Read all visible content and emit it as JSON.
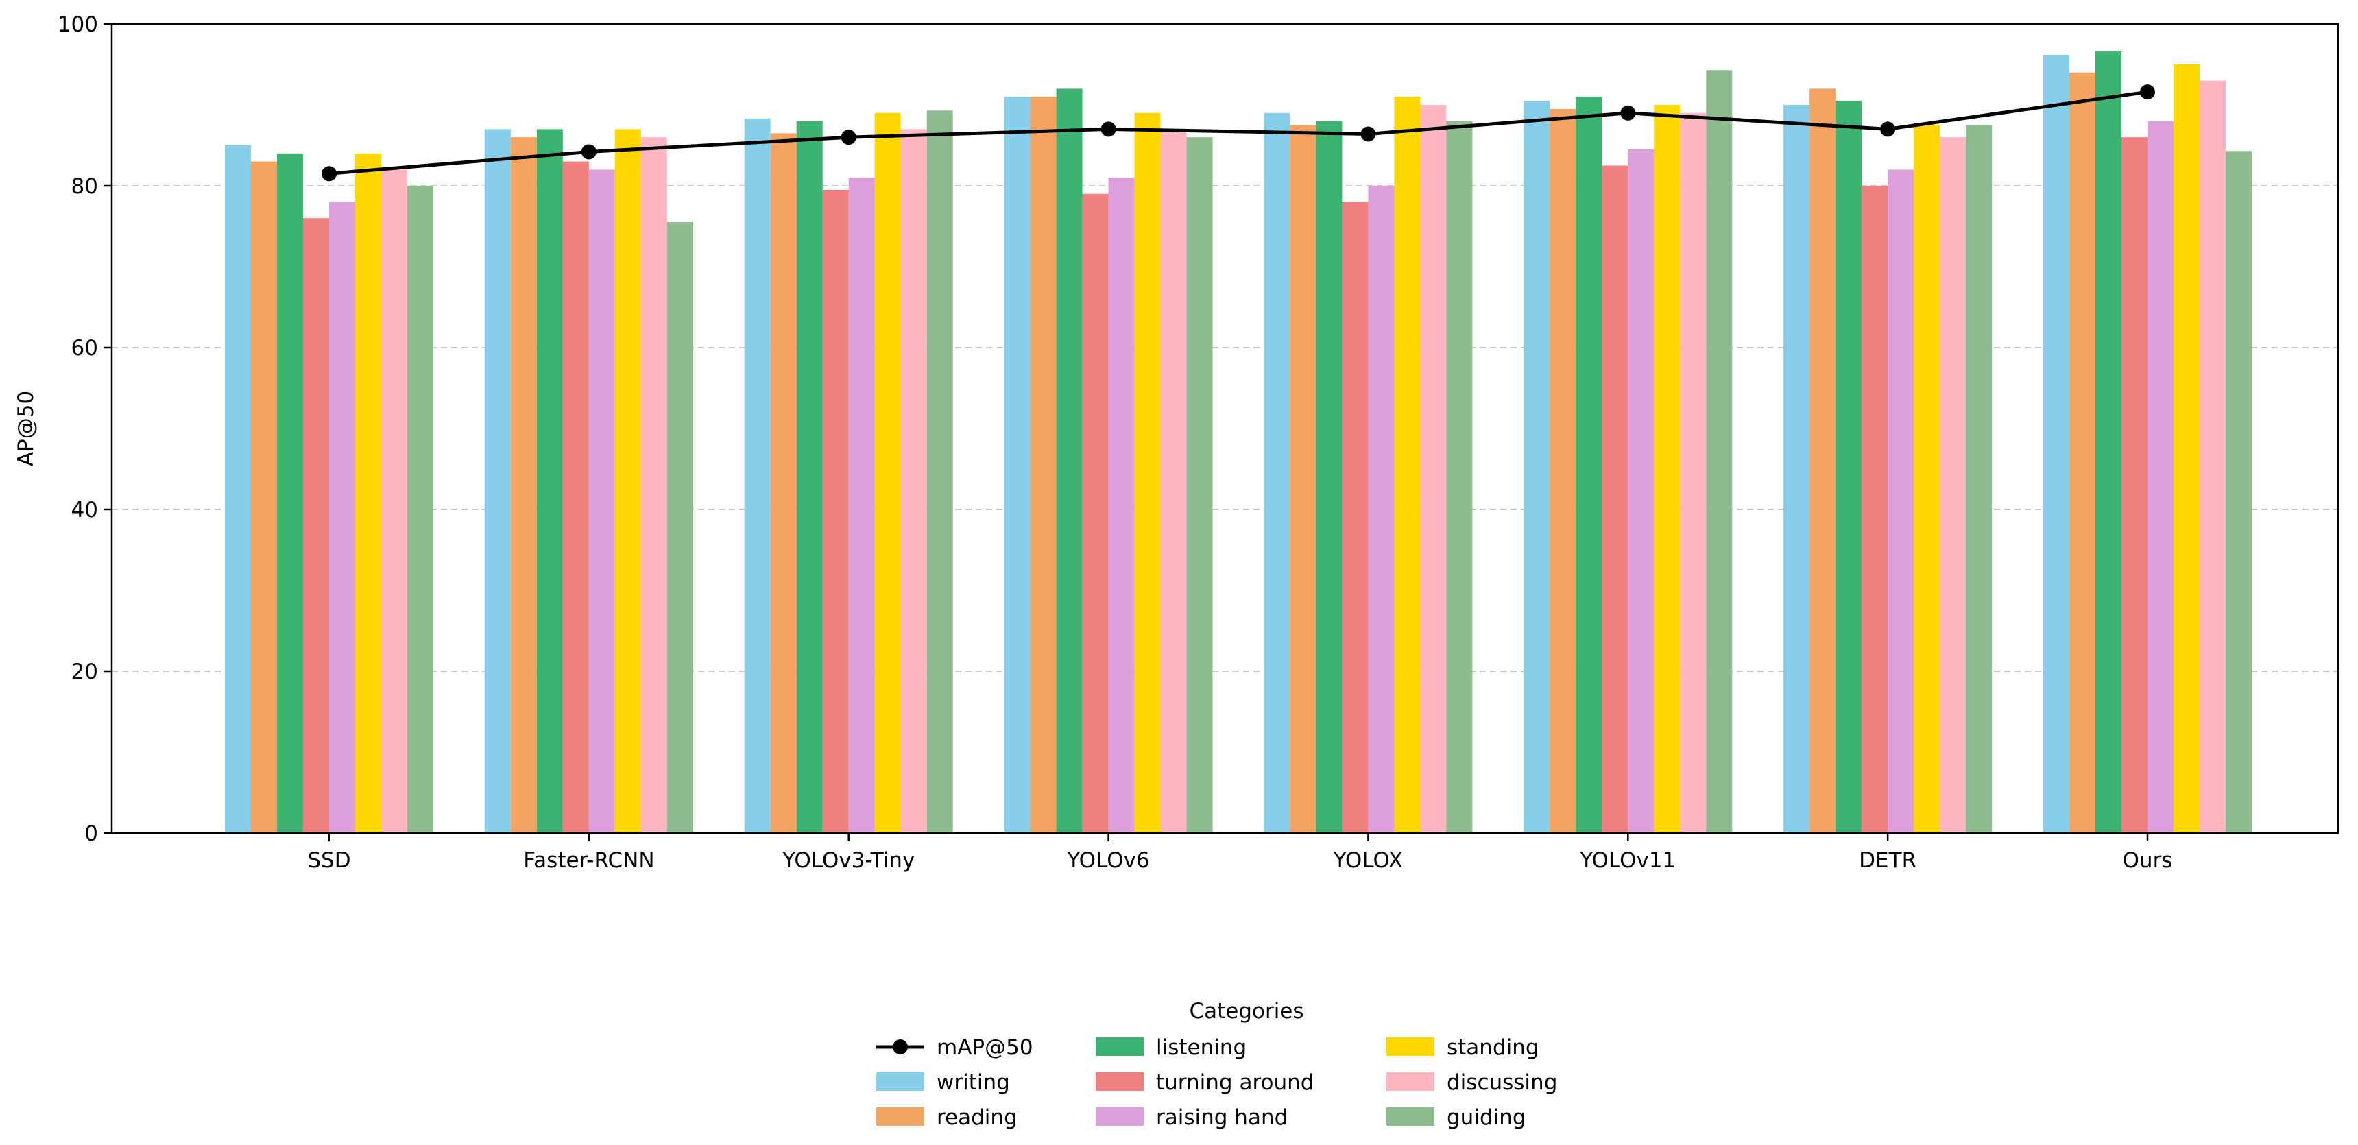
{
  "chart_data": {
    "type": "bar",
    "title": "",
    "xlabel": "",
    "ylabel": "AP@50",
    "ylim": [
      0,
      100
    ],
    "yticks": [
      0,
      20,
      40,
      60,
      80,
      100
    ],
    "grid": "y-dashed",
    "categories": [
      "SSD",
      "Faster-RCNN",
      "YOLOv3-Tiny",
      "YOLOv6",
      "YOLOX",
      "YOLOv11",
      "DETR",
      "Ours"
    ],
    "series": [
      {
        "name": "writing",
        "color": "#87CEEB",
        "values": [
          85,
          87,
          88.3,
          91,
          89,
          90.5,
          90,
          96.2
        ]
      },
      {
        "name": "reading",
        "color": "#F4A460",
        "values": [
          83,
          86,
          86.5,
          91,
          87.5,
          89.5,
          92,
          94
        ]
      },
      {
        "name": "listening",
        "color": "#3CB371",
        "values": [
          84,
          87,
          88,
          92,
          88,
          91,
          90.5,
          96.6
        ]
      },
      {
        "name": "turning around",
        "color": "#F08080",
        "values": [
          76,
          83,
          79.5,
          79,
          78,
          82.5,
          80,
          86
        ]
      },
      {
        "name": "raising hand",
        "color": "#DDA0DD",
        "values": [
          78,
          82,
          81,
          81,
          80,
          84.5,
          82,
          88
        ]
      },
      {
        "name": "standing",
        "color": "#FFD700",
        "values": [
          84,
          87,
          89,
          89,
          91,
          90,
          87.5,
          95
        ]
      },
      {
        "name": "discussing",
        "color": "#FFB6C1",
        "values": [
          82,
          86,
          87,
          87,
          90,
          89,
          86,
          93
        ]
      },
      {
        "name": "guiding",
        "color": "#8FBC8F",
        "values": [
          80,
          75.5,
          89.3,
          86,
          88,
          94.3,
          87.5,
          84.3
        ]
      }
    ],
    "line": {
      "name": "mAP@50",
      "color": "#000000",
      "values": [
        81.5,
        84.2,
        86,
        87,
        86.4,
        89,
        87,
        91.6
      ]
    },
    "legend": {
      "title": "Categories",
      "placement": "bottom-center",
      "columns": 3
    }
  }
}
